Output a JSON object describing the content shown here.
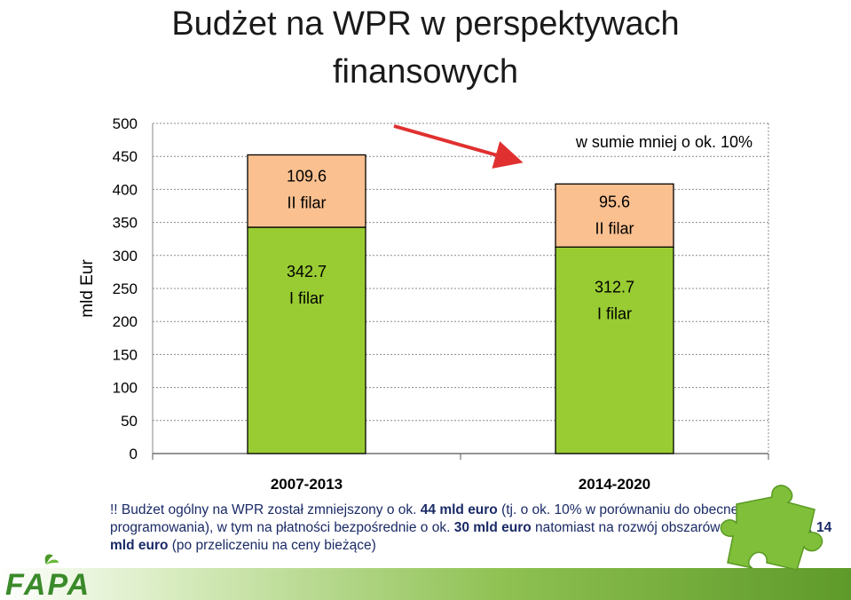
{
  "title": {
    "line1": "Budżet na WPR w perspektywach",
    "line2": "finansowych"
  },
  "chart_data": {
    "type": "bar",
    "stacked": true,
    "categories": [
      "2007-2013",
      "2014-2020"
    ],
    "series": [
      {
        "name": "I filar",
        "values": [
          342.7,
          312.7
        ],
        "color": "#99cc33"
      },
      {
        "name": "II filar",
        "values": [
          109.6,
          95.6
        ],
        "color": "#fac090"
      }
    ],
    "segment_labels": [
      {
        "value": "342.7",
        "name": "I filar"
      },
      {
        "value": "109.6",
        "name": "II filar"
      },
      {
        "value": "312.7",
        "name": "I filar"
      },
      {
        "value": "95.6",
        "name": "II filar"
      }
    ],
    "ylabel": "mld Eur",
    "ylim": [
      0,
      500
    ],
    "yticks": [
      "0",
      "50",
      "100",
      "150",
      "200",
      "250",
      "300",
      "350",
      "400",
      "450",
      "500"
    ],
    "grid": true,
    "annotation": "w sumie mniej  o ok. 10%",
    "arrow_color": "#e03030"
  },
  "note": {
    "p1": "!! Budżet ogólny na WPR został zmniejszony o ok. ",
    "b1": "44 mld euro",
    "p2": " (tj. o ok. 10% w porównaniu do obecnego okresu programowania), w tym na płatności bezpośrednie o ok. ",
    "b2": "30 mld euro",
    "p3": " natomiast na rozwój obszarów wiejskich o ok. ",
    "b3": "14 mld euro",
    "p4": " (po przeliczeniu na ceny bieżące)"
  },
  "logo": {
    "text": "FAPA",
    "color": "#3a8a2a"
  }
}
